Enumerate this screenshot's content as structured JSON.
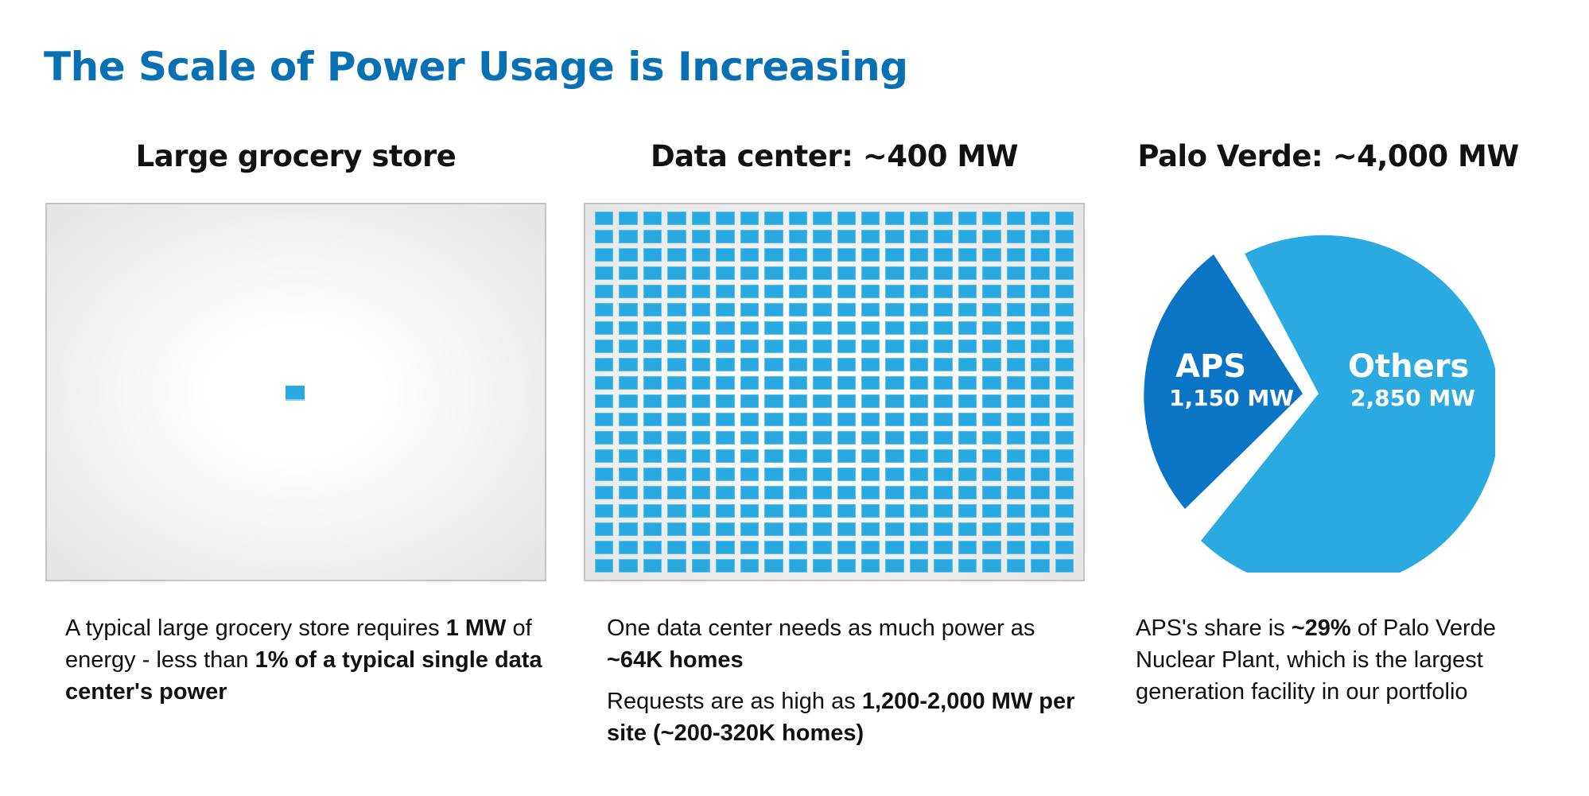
{
  "title": "The Scale of Power Usage is Increasing",
  "colors": {
    "title_blue": "#0a70b4",
    "cell_blue": "#29a9e1",
    "aps_blue": "#0b74c4",
    "others_blue": "#2aaae1",
    "panel_border": "#c4c4c4"
  },
  "columns": [
    {
      "heading": "Large grocery store",
      "units_shown": 1,
      "description": [
        {
          "parts": [
            {
              "text": "A typical large grocery store requires ",
              "bold": false
            },
            {
              "text": "1 MW",
              "bold": true
            },
            {
              "text": " of energy - less than ",
              "bold": false
            },
            {
              "text": "1% of a typical single data center's power",
              "bold": true
            }
          ]
        }
      ]
    },
    {
      "heading": "Data center: ~400 MW",
      "units_shown": 400,
      "grid": {
        "rows": 20,
        "cols": 20
      },
      "description": [
        {
          "parts": [
            {
              "text": "One data center needs as much power as ",
              "bold": false
            },
            {
              "text": "~64K homes",
              "bold": true
            }
          ]
        },
        {
          "parts": [
            {
              "text": "Requests are as high as ",
              "bold": false
            },
            {
              "text": "1,200-2,000 MW per site (~200-320K homes)",
              "bold": true
            }
          ]
        }
      ]
    },
    {
      "heading": "Palo Verde: ~4,000 MW",
      "description": [
        {
          "parts": [
            {
              "text": "APS's share is ",
              "bold": false
            },
            {
              "text": "~29%",
              "bold": true
            },
            {
              "text": " of Palo Verde Nuclear Plant, which is the largest generation facility in our portfolio",
              "bold": false
            }
          ]
        }
      ]
    }
  ],
  "pie": {
    "aps": {
      "label": "APS",
      "value_label": "1,150 MW"
    },
    "others": {
      "label": "Others",
      "value_label": "2,850 MW"
    }
  },
  "chart_data": [
    {
      "type": "bar",
      "title": "Large grocery store vs Data center (unit squares = 1 MW)",
      "categories": [
        "Large grocery store",
        "Data center"
      ],
      "values": [
        1,
        400
      ],
      "unit": "MW",
      "layout": "unit-square grid, data center shown as 20 x 20 = 400 squares"
    },
    {
      "type": "pie",
      "title": "Palo Verde: ~4,000 MW",
      "categories": [
        "APS",
        "Others"
      ],
      "values": [
        1150,
        2850
      ],
      "unit": "MW",
      "shares_pct": [
        28.75,
        71.25
      ],
      "colors": [
        "#0b74c4",
        "#2aaae1"
      ],
      "annotations": [
        "APS 1,150 MW",
        "Others 2,850 MW"
      ]
    }
  ]
}
